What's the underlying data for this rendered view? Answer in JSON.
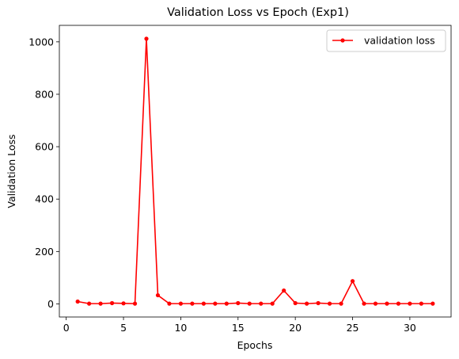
{
  "chart_data": {
    "type": "line",
    "title": "Validation Loss vs Epoch (Exp1)",
    "xlabel": "Epochs",
    "ylabel": "Validation Loss",
    "xlim": [
      -0.6,
      33.6
    ],
    "ylim": [
      -50,
      1063
    ],
    "xticks": [
      0,
      5,
      10,
      15,
      20,
      25,
      30
    ],
    "yticks": [
      0,
      200,
      400,
      600,
      800,
      1000
    ],
    "grid": false,
    "legend_position": "top-right",
    "series_color": "#ff0000",
    "series": [
      {
        "name": "validation loss",
        "x": [
          1,
          2,
          3,
          4,
          5,
          6,
          7,
          8,
          9,
          10,
          11,
          12,
          13,
          14,
          15,
          16,
          17,
          18,
          19,
          20,
          21,
          22,
          23,
          24,
          25,
          26,
          27,
          28,
          29,
          30,
          31,
          32
        ],
        "values": [
          9,
          1,
          1,
          3,
          2,
          1,
          1012,
          33,
          1,
          1,
          1,
          1,
          1,
          1,
          3,
          1,
          1,
          1,
          51,
          3,
          1,
          3,
          1,
          1,
          87,
          1,
          1,
          1,
          1,
          1,
          1,
          1
        ]
      }
    ]
  }
}
